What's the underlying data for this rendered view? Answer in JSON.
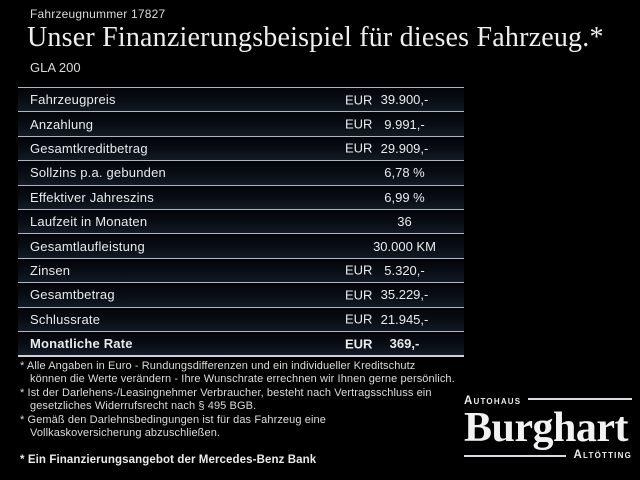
{
  "colors": {
    "background": "#000000",
    "separator_line": "#aeb7c1",
    "text": "#e9eaec"
  },
  "header": {
    "vehicle_number": "Fahrzeugnummer 17827",
    "title": "Unser Finanzierungsbeispiel für dieses Fahrzeug.*",
    "model": "GLA 200"
  },
  "table": {
    "rows": [
      {
        "label": "Fahrzeugpreis",
        "currency": "EUR",
        "value": "39.900,-",
        "bold": false
      },
      {
        "label": "Anzahlung",
        "currency": "EUR",
        "value": "9.991,-",
        "bold": false
      },
      {
        "label": "Gesamtkreditbetrag",
        "currency": "EUR",
        "value": "29.909,-",
        "bold": false
      },
      {
        "label": "Sollzins p.a. gebunden",
        "currency": "",
        "value": "6,78 %",
        "bold": false
      },
      {
        "label": "Effektiver Jahreszins",
        "currency": "",
        "value": "6,99 %",
        "bold": false
      },
      {
        "label": "Laufzeit in Monaten",
        "currency": "",
        "value": "36",
        "bold": false
      },
      {
        "label": "Gesamtlaufleistung",
        "currency": "",
        "value": "30.000 KM",
        "bold": false
      },
      {
        "label": "Zinsen",
        "currency": "EUR",
        "value": "5.320,-",
        "bold": false
      },
      {
        "label": "Gesamtbetrag",
        "currency": "EUR",
        "value": "35.229,-",
        "bold": false
      },
      {
        "label": "Schlussrate",
        "currency": "EUR",
        "value": "21.945,-",
        "bold": false
      },
      {
        "label": "Monatliche Rate",
        "currency": "EUR",
        "value": "369,-",
        "bold": true
      }
    ]
  },
  "footnotes": [
    "* Alle Angaben in Euro - Rundungsdifferenzen und ein individueller Kreditschutz\nkönnen die Werte verändern - Ihre Wunschrate errechnen wir Ihnen gerne persönlich.",
    "* Ist der Darlehens-/Leasingnehmer Verbraucher, besteht nach Vertragsschluss ein\ngesetzliches Widerrufsrecht nach § 495 BGB.",
    "* Gemäß den Darlehnsbedingungen ist für das Fahrzeug eine\nVollkaskoversicherung abzuschließen."
  ],
  "bank_note": "* Ein Finanzierungsangebot der Mercedes-Benz Bank",
  "logo": {
    "top": "Autohaus",
    "name": "Burghart",
    "bottom": "Altötting"
  }
}
